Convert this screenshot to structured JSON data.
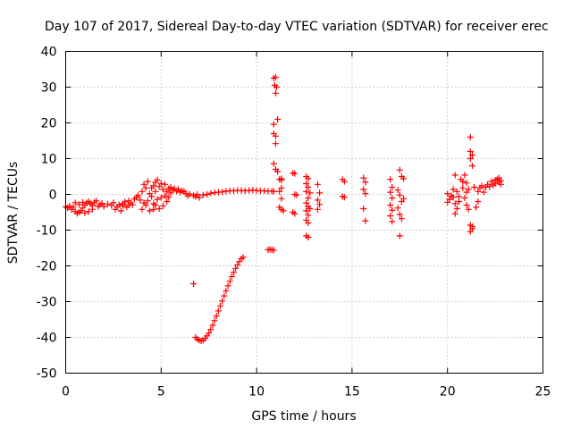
{
  "chart_data": {
    "type": "scatter",
    "title": "Day 107 of 2017, Sidereal Day-to-day VTEC variation (SDTVAR) for receiver erec",
    "xlabel": "GPS time / hours",
    "ylabel": "SDTVAR / TECUs",
    "xlim": [
      0,
      25
    ],
    "ylim": [
      -50,
      40
    ],
    "xticks": [
      0,
      5,
      10,
      15,
      20,
      25
    ],
    "yticks": [
      -50,
      -40,
      -30,
      -20,
      -10,
      0,
      10,
      20,
      30,
      40
    ],
    "xtick_labels": [
      "0",
      "5",
      "10",
      "15",
      "20",
      "25"
    ],
    "ytick_labels": [
      "-50",
      "-40",
      "-30",
      "-20",
      "-10",
      "0",
      "10",
      "20",
      "30",
      "40"
    ],
    "grid": true,
    "marker": "+",
    "color": "#ff0000",
    "series": [
      {
        "name": "SDTVAR",
        "points": [
          [
            0.0,
            -3.5
          ],
          [
            0.1,
            -3.8
          ],
          [
            0.2,
            -3.2
          ],
          [
            0.3,
            -4.2
          ],
          [
            0.4,
            -3.6
          ],
          [
            0.5,
            -4.8
          ],
          [
            0.6,
            -5.3
          ],
          [
            0.7,
            -5.0
          ],
          [
            0.8,
            -4.6
          ],
          [
            0.9,
            -3.8
          ],
          [
            1.0,
            -3.0
          ],
          [
            1.1,
            -2.4
          ],
          [
            1.2,
            -2.0
          ],
          [
            1.3,
            -2.6
          ],
          [
            1.4,
            -3.1
          ],
          [
            1.5,
            -2.2
          ],
          [
            1.6,
            -1.8
          ],
          [
            0.5,
            -2.3
          ],
          [
            0.7,
            -2.8
          ],
          [
            0.9,
            -2.2
          ],
          [
            1.0,
            -5.2
          ],
          [
            1.2,
            -4.8
          ],
          [
            1.4,
            -4.2
          ],
          [
            1.7,
            -3.4
          ],
          [
            1.8,
            -2.9
          ],
          [
            1.9,
            -2.5
          ],
          [
            2.0,
            -3.4
          ],
          [
            2.2,
            -2.7
          ],
          [
            2.4,
            -3.1
          ],
          [
            2.5,
            -2.3
          ],
          [
            2.6,
            -4.2
          ],
          [
            2.7,
            -3.5
          ],
          [
            2.8,
            -2.9
          ],
          [
            2.9,
            -4.6
          ],
          [
            3.0,
            -3.2
          ],
          [
            3.1,
            -2.1
          ],
          [
            3.2,
            -3.6
          ],
          [
            3.3,
            -1.8
          ],
          [
            3.4,
            -2.4
          ],
          [
            3.5,
            -2.9
          ],
          [
            3.6,
            -1.3
          ],
          [
            3.7,
            -0.8
          ],
          [
            3.8,
            -0.3
          ],
          [
            3.9,
            -1.6
          ],
          [
            4.0,
            -4.2
          ],
          [
            4.0,
            0.8
          ],
          [
            4.1,
            -2.4
          ],
          [
            4.1,
            2.8
          ],
          [
            4.2,
            -3.0
          ],
          [
            4.2,
            1.8
          ],
          [
            4.3,
            -1.8
          ],
          [
            4.3,
            3.6
          ],
          [
            4.4,
            -4.6
          ],
          [
            4.4,
            0.2
          ],
          [
            4.5,
            1.8
          ],
          [
            4.5,
            -0.6
          ],
          [
            4.6,
            2.4
          ],
          [
            4.6,
            -2.6
          ],
          [
            4.7,
            3.4
          ],
          [
            4.7,
            0.8
          ],
          [
            4.8,
            4.1
          ],
          [
            4.8,
            -1.4
          ],
          [
            4.9,
            -4.0
          ],
          [
            4.9,
            2.2
          ],
          [
            5.0,
            3.0
          ],
          [
            5.0,
            -0.9
          ],
          [
            5.1,
            1.4
          ],
          [
            5.1,
            -3.2
          ],
          [
            5.2,
            -0.4
          ],
          [
            5.2,
            2.8
          ],
          [
            5.3,
            0.8
          ],
          [
            5.3,
            -2.0
          ],
          [
            5.4,
            1.6
          ],
          [
            5.4,
            -0.8
          ],
          [
            5.5,
            2.0
          ],
          [
            5.5,
            0.4
          ],
          [
            5.6,
            1.2
          ],
          [
            5.7,
            1.6
          ],
          [
            5.8,
            0.9
          ],
          [
            5.9,
            1.4
          ],
          [
            6.0,
            0.6
          ],
          [
            6.1,
            1.0
          ],
          [
            6.2,
            0.8
          ],
          [
            6.3,
            0.2
          ],
          [
            6.4,
            -0.4
          ],
          [
            6.5,
            0.1
          ],
          [
            3.0,
            -2.6
          ],
          [
            3.3,
            -3.0
          ],
          [
            4.6,
            -4.2
          ],
          [
            4.7,
            -3.0
          ],
          [
            6.7,
            -0.3
          ],
          [
            6.8,
            -0.6
          ],
          [
            6.9,
            0.0
          ],
          [
            7.0,
            -0.9
          ],
          [
            7.2,
            -0.2
          ],
          [
            7.4,
            0.0
          ],
          [
            7.6,
            0.3
          ],
          [
            7.8,
            0.5
          ],
          [
            8.0,
            0.6
          ],
          [
            8.2,
            0.7
          ],
          [
            8.4,
            0.9
          ],
          [
            8.6,
            1.0
          ],
          [
            8.8,
            1.0
          ],
          [
            9.0,
            1.1
          ],
          [
            9.2,
            1.1
          ],
          [
            9.4,
            1.0
          ],
          [
            9.6,
            1.1
          ],
          [
            9.8,
            1.2
          ],
          [
            10.0,
            1.1
          ],
          [
            10.2,
            1.0
          ],
          [
            10.4,
            1.0
          ],
          [
            10.6,
            0.9
          ],
          [
            10.8,
            0.9
          ],
          [
            10.9,
            0.8
          ],
          [
            6.7,
            -25.0
          ],
          [
            6.8,
            -40.0
          ],
          [
            6.9,
            -40.5
          ],
          [
            7.0,
            -40.8
          ],
          [
            7.1,
            -41.0
          ],
          [
            7.2,
            -40.8
          ],
          [
            7.3,
            -40.3
          ],
          [
            7.4,
            -39.6
          ],
          [
            7.5,
            -38.8
          ],
          [
            7.6,
            -37.8
          ],
          [
            7.7,
            -36.6
          ],
          [
            7.8,
            -35.3
          ],
          [
            7.9,
            -34.0
          ],
          [
            8.0,
            -32.6
          ],
          [
            8.1,
            -31.2
          ],
          [
            8.2,
            -29.8
          ],
          [
            8.3,
            -28.4
          ],
          [
            8.4,
            -27.0
          ],
          [
            8.5,
            -25.6
          ],
          [
            8.6,
            -24.3
          ],
          [
            8.7,
            -23.0
          ],
          [
            8.8,
            -21.8
          ],
          [
            8.9,
            -20.7
          ],
          [
            9.0,
            -19.7
          ],
          [
            9.1,
            -18.8
          ],
          [
            9.2,
            -18.0
          ],
          [
            9.3,
            -17.6
          ],
          [
            10.6,
            -15.5
          ],
          [
            10.7,
            -15.4
          ],
          [
            10.8,
            -15.5
          ],
          [
            10.9,
            -15.6
          ],
          [
            10.9,
            32.5
          ],
          [
            11.0,
            32.8
          ],
          [
            10.95,
            30.5
          ],
          [
            11.05,
            30.0
          ],
          [
            11.0,
            28.3
          ],
          [
            10.9,
            17.0
          ],
          [
            11.0,
            16.3
          ],
          [
            10.9,
            19.6
          ],
          [
            11.1,
            21.0
          ],
          [
            11.0,
            14.2
          ],
          [
            10.9,
            8.6
          ],
          [
            11.0,
            7.0
          ],
          [
            11.1,
            6.4
          ],
          [
            11.2,
            4.2
          ],
          [
            11.3,
            4.0
          ],
          [
            11.3,
            1.8
          ],
          [
            11.2,
            0.8
          ],
          [
            11.3,
            -1.2
          ],
          [
            11.2,
            -3.6
          ],
          [
            11.3,
            -4.2
          ],
          [
            11.4,
            -4.6
          ],
          [
            11.3,
            4.4
          ],
          [
            11.9,
            6.0
          ],
          [
            12.0,
            5.8
          ],
          [
            12.0,
            0.0
          ],
          [
            12.1,
            -0.2
          ],
          [
            11.9,
            -5.0
          ],
          [
            12.0,
            -5.4
          ],
          [
            12.6,
            5.0
          ],
          [
            12.7,
            4.4
          ],
          [
            12.6,
            3.0
          ],
          [
            12.7,
            2.0
          ],
          [
            12.6,
            0.8
          ],
          [
            12.7,
            -1.0
          ],
          [
            12.6,
            -2.4
          ],
          [
            12.7,
            -3.4
          ],
          [
            12.6,
            -4.6
          ],
          [
            12.7,
            -5.8
          ],
          [
            12.6,
            -7.2
          ],
          [
            12.7,
            -8.0
          ],
          [
            12.6,
            -11.6
          ],
          [
            12.7,
            -12.0
          ],
          [
            12.8,
            -4.0
          ],
          [
            12.8,
            0.4
          ],
          [
            13.2,
            2.8
          ],
          [
            13.3,
            0.4
          ],
          [
            13.2,
            -1.6
          ],
          [
            13.3,
            -2.8
          ],
          [
            13.2,
            -4.2
          ],
          [
            14.5,
            4.2
          ],
          [
            14.6,
            3.6
          ],
          [
            14.5,
            -0.6
          ],
          [
            14.6,
            -0.8
          ],
          [
            15.6,
            4.6
          ],
          [
            15.7,
            3.4
          ],
          [
            15.6,
            1.4
          ],
          [
            15.7,
            0.2
          ],
          [
            15.6,
            -4.0
          ],
          [
            15.7,
            -7.4
          ],
          [
            17.0,
            4.2
          ],
          [
            17.1,
            2.0
          ],
          [
            17.0,
            0.6
          ],
          [
            17.1,
            -1.0
          ],
          [
            17.0,
            -3.0
          ],
          [
            17.1,
            -4.4
          ],
          [
            17.0,
            -6.0
          ],
          [
            17.1,
            -7.6
          ],
          [
            17.5,
            6.8
          ],
          [
            17.6,
            5.0
          ],
          [
            17.4,
            1.2
          ],
          [
            17.5,
            -0.2
          ],
          [
            17.6,
            -2.0
          ],
          [
            17.4,
            -3.8
          ],
          [
            17.5,
            -5.6
          ],
          [
            17.6,
            -6.8
          ],
          [
            17.5,
            -11.6
          ],
          [
            17.7,
            4.4
          ],
          [
            17.7,
            -1.2
          ],
          [
            20.0,
            0.2
          ],
          [
            20.1,
            -1.4
          ],
          [
            20.0,
            -2.2
          ],
          [
            20.2,
            -0.4
          ],
          [
            20.3,
            -0.8
          ],
          [
            20.3,
            1.4
          ],
          [
            20.4,
            -2.6
          ],
          [
            20.5,
            -4.0
          ],
          [
            20.4,
            -5.4
          ],
          [
            20.6,
            -2.0
          ],
          [
            20.6,
            -0.6
          ],
          [
            20.5,
            0.8
          ],
          [
            20.4,
            5.4
          ],
          [
            20.7,
            4.2
          ],
          [
            20.8,
            3.6
          ],
          [
            20.8,
            1.8
          ],
          [
            20.9,
            -1.0
          ],
          [
            20.9,
            5.4
          ],
          [
            21.0,
            3.2
          ],
          [
            21.0,
            0.6
          ],
          [
            21.0,
            -3.0
          ],
          [
            21.1,
            -4.2
          ],
          [
            21.1,
            1.4
          ],
          [
            21.2,
            16.0
          ],
          [
            21.2,
            12.0
          ],
          [
            21.3,
            11.0
          ],
          [
            21.2,
            10.0
          ],
          [
            21.3,
            8.0
          ],
          [
            21.2,
            -8.6
          ],
          [
            21.3,
            -9.6
          ],
          [
            21.2,
            -10.4
          ],
          [
            21.3,
            -9.0
          ],
          [
            21.4,
            2.0
          ],
          [
            21.5,
            -3.6
          ],
          [
            21.6,
            -2.0
          ],
          [
            21.6,
            0.8
          ],
          [
            21.7,
            1.8
          ],
          [
            21.8,
            2.4
          ],
          [
            21.9,
            0.6
          ],
          [
            22.0,
            2.0
          ],
          [
            22.1,
            2.8
          ],
          [
            22.2,
            2.2
          ],
          [
            22.3,
            3.6
          ],
          [
            22.4,
            2.6
          ],
          [
            22.5,
            4.0
          ],
          [
            22.5,
            3.0
          ],
          [
            22.6,
            4.2
          ],
          [
            22.7,
            3.4
          ],
          [
            22.7,
            4.6
          ],
          [
            22.8,
            3.8
          ],
          [
            22.8,
            2.8
          ]
        ]
      }
    ]
  }
}
